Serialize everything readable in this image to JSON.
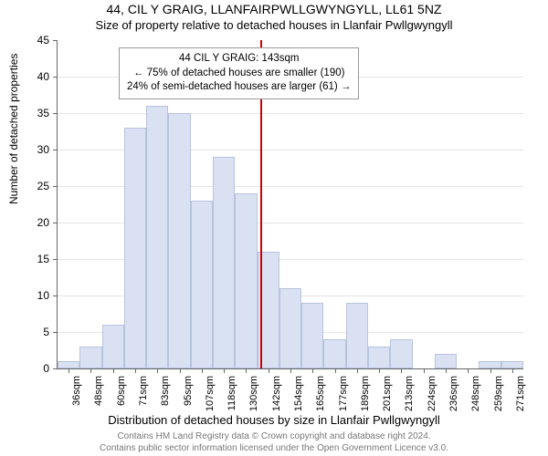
{
  "title_line1": "44, CIL Y GRAIG, LLANFAIRPWLLGWYNGYLL, LL61 5NZ",
  "title_line2": "Size of property relative to detached houses in Llanfair Pwllgwyngyll",
  "y_axis_label": "Number of detached properties",
  "x_axis_label": "Distribution of detached houses by size in Llanfair Pwllgwyngyll",
  "footer_line1": "Contains HM Land Registry data © Crown copyright and database right 2024.",
  "footer_line2": "Contains public sector information licensed under the Open Government Licence v3.0.",
  "tooltip": {
    "line1": "44 CIL Y GRAIG: 143sqm",
    "line2": "← 75% of detached houses are smaller (190)",
    "line3": "24% of semi-detached houses are larger (61) →"
  },
  "chart": {
    "type": "histogram",
    "ylim": [
      0,
      45
    ],
    "ytick_step": 5,
    "yticks": [
      0,
      5,
      10,
      15,
      20,
      25,
      30,
      35,
      40,
      45
    ],
    "xticks": [
      "36sqm",
      "48sqm",
      "60sqm",
      "71sqm",
      "83sqm",
      "95sqm",
      "107sqm",
      "118sqm",
      "130sqm",
      "142sqm",
      "154sqm",
      "165sqm",
      "177sqm",
      "189sqm",
      "201sqm",
      "213sqm",
      "224sqm",
      "236sqm",
      "248sqm",
      "259sqm",
      "271sqm"
    ],
    "bars": [
      {
        "label": "36",
        "value": 1
      },
      {
        "label": "48",
        "value": 3
      },
      {
        "label": "60",
        "value": 6
      },
      {
        "label": "71",
        "value": 33
      },
      {
        "label": "83",
        "value": 36
      },
      {
        "label": "95",
        "value": 35
      },
      {
        "label": "107",
        "value": 23
      },
      {
        "label": "118",
        "value": 29
      },
      {
        "label": "130",
        "value": 24
      },
      {
        "label": "142",
        "value": 16
      },
      {
        "label": "154",
        "value": 11
      },
      {
        "label": "165",
        "value": 9
      },
      {
        "label": "177",
        "value": 4
      },
      {
        "label": "189",
        "value": 9
      },
      {
        "label": "201",
        "value": 3
      },
      {
        "label": "213",
        "value": 4
      },
      {
        "label": "224",
        "value": 0
      },
      {
        "label": "236",
        "value": 2
      },
      {
        "label": "248",
        "value": 0
      },
      {
        "label": "259",
        "value": 1
      },
      {
        "label": "271",
        "value": 1
      }
    ],
    "marker_line_index": 9.15,
    "bar_fill": "#d9e1f2",
    "bar_stroke": "#b8c4de",
    "marker_color": "#cc0000",
    "grid_color": "#e5e5e5",
    "axis_color": "#666666",
    "background": "#ffffff",
    "title_fontsize": 14,
    "subtitle_fontsize": 13,
    "label_fontsize": 12,
    "tick_fontsize": 11,
    "footer_fontsize": 10,
    "footer_color": "#777777"
  }
}
